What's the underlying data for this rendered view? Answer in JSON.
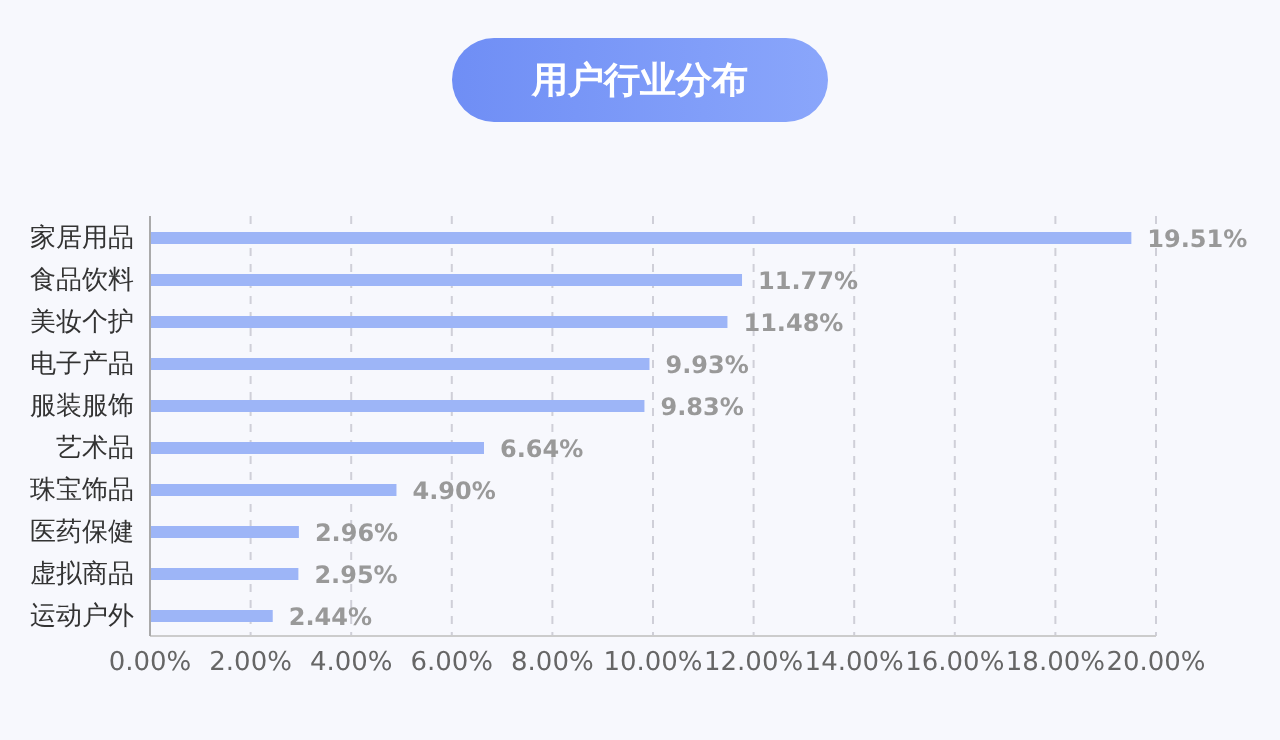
{
  "chart_data": {
    "type": "bar",
    "orientation": "horizontal",
    "title": "用户行业分布",
    "categories": [
      "家居用品",
      "食品饮料",
      "美妆个护",
      "电子产品",
      "服装服饰",
      "艺术品",
      "珠宝饰品",
      "医药保健",
      "虚拟商品",
      "运动户外"
    ],
    "values": [
      19.51,
      11.77,
      11.48,
      9.93,
      9.83,
      6.64,
      4.9,
      2.96,
      2.95,
      2.44
    ],
    "value_labels": [
      "19.51%",
      "11.77%",
      "11.48%",
      "9.93%",
      "9.83%",
      "6.64%",
      "4.90%",
      "2.96%",
      "2.95%",
      "2.44%"
    ],
    "color": "#9db5f7",
    "xlim": [
      0,
      20
    ],
    "xticks": [
      {
        "value": 0,
        "label": "0.00%"
      },
      {
        "value": 2,
        "label": "2.00%"
      },
      {
        "value": 4,
        "label": "4.00%"
      },
      {
        "value": 6,
        "label": "6.00%"
      },
      {
        "value": 8,
        "label": "8.00%"
      },
      {
        "value": 10,
        "label": "10.00%"
      },
      {
        "value": 12,
        "label": "12.00%"
      },
      {
        "value": 14,
        "label": "14.00%"
      },
      {
        "value": 16,
        "label": "16.00%"
      },
      {
        "value": 18,
        "label": "18.00%"
      },
      {
        "value": 20,
        "label": "20.00%"
      }
    ],
    "grid": "x",
    "legend": false
  }
}
